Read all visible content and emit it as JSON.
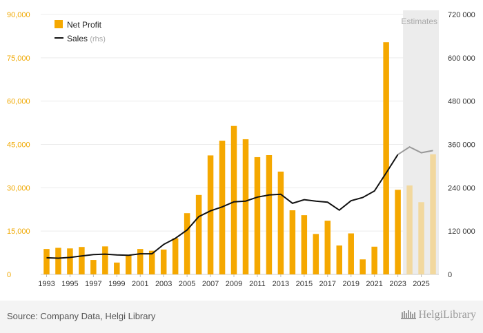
{
  "chart_data": {
    "type": "bar",
    "years": [
      1993,
      1994,
      1995,
      1996,
      1997,
      1998,
      1999,
      2000,
      2001,
      2002,
      2003,
      2004,
      2005,
      2006,
      2007,
      2008,
      2009,
      2010,
      2011,
      2012,
      2013,
      2014,
      2015,
      2016,
      2017,
      2018,
      2019,
      2020,
      2021,
      2022,
      2023,
      2024,
      2025,
      2026
    ],
    "x_tick_labels": [
      "1993",
      "1995",
      "1997",
      "1999",
      "2001",
      "2003",
      "2005",
      "2007",
      "2009",
      "2011",
      "2013",
      "2015",
      "2017",
      "2019",
      "2021",
      "2023",
      "2025"
    ],
    "series": [
      {
        "name": "Net Profit",
        "kind": "bar",
        "axis": "left",
        "color": "#f5a800",
        "estimate_color": "#f2d89e",
        "values": [
          8800,
          9200,
          9000,
          9500,
          5000,
          9700,
          4100,
          6600,
          8800,
          8200,
          8600,
          12500,
          21200,
          27500,
          41200,
          46300,
          51400,
          46800,
          40600,
          41300,
          35600,
          22200,
          20500,
          14000,
          18600,
          10000,
          14200,
          5200,
          9600,
          80400,
          29300,
          30800,
          25000,
          41600
        ]
      },
      {
        "name": "Sales",
        "name_suffix": "(rhs)",
        "kind": "line",
        "axis": "right",
        "color": "#111111",
        "estimate_color": "#999999",
        "values": [
          46000,
          45000,
          47000,
          51000,
          55000,
          56000,
          54000,
          53000,
          57000,
          57000,
          83000,
          100000,
          123000,
          160000,
          176000,
          187000,
          201000,
          203000,
          214000,
          220000,
          222000,
          197000,
          207000,
          203000,
          200000,
          178000,
          204000,
          213000,
          231000,
          281000,
          332000,
          353000,
          337000,
          343000
        ]
      }
    ],
    "estimates_from_year": 2024,
    "estimates_label": "Estimates",
    "left_axis": {
      "ylim": [
        0,
        90000
      ],
      "ticks": [
        "0",
        "15,000",
        "30,000",
        "45,000",
        "60,000",
        "75,000",
        "90,000"
      ],
      "color": "#f0a800"
    },
    "right_axis": {
      "ylim": [
        0,
        720000
      ],
      "ticks": [
        "0",
        "120 000",
        "240 000",
        "360 000",
        "480 000",
        "600 000",
        "720 000"
      ]
    },
    "grid": true,
    "legend_position": "top-left"
  },
  "footer": {
    "source": "Source: Company Data, Helgi Library",
    "logo": "HelgiLibrary"
  }
}
